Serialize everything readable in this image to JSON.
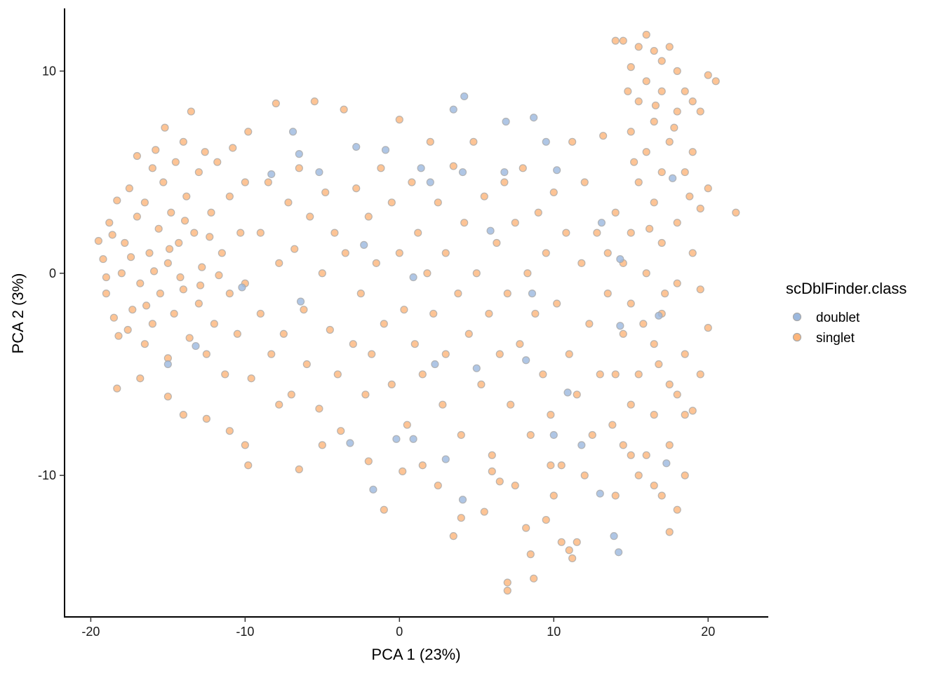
{
  "chart_data": {
    "type": "scatter",
    "title": "",
    "xlabel": "PCA 1 (23%)",
    "ylabel": "PCA 2 (3%)",
    "xlim": [
      -21.7,
      23.9
    ],
    "ylim": [
      -17.0,
      13.1
    ],
    "xticks": [
      -20,
      -10,
      0,
      10,
      20
    ],
    "yticks": [
      -10,
      0,
      10
    ],
    "grid": false,
    "legend": {
      "title": "scDblFinder.class",
      "placement": "right",
      "entries": [
        "doublet",
        "singlet"
      ]
    },
    "colors": {
      "doublet": "#9BB8DE",
      "singlet": "#FDB57A",
      "outline": "#A8A8A8"
    },
    "series": [
      {
        "name": "singlet",
        "points": [
          [
            -19.5,
            1.6
          ],
          [
            -19.2,
            0.7
          ],
          [
            -19,
            -1
          ],
          [
            -18.8,
            2.5
          ],
          [
            -18.5,
            -2.2
          ],
          [
            -18.3,
            3.6
          ],
          [
            -18.2,
            -3.1
          ],
          [
            -18,
            0
          ],
          [
            -17.8,
            1.5
          ],
          [
            -17.5,
            4.2
          ],
          [
            -17.3,
            -1.8
          ],
          [
            -17,
            5.8
          ],
          [
            -17,
            2.8
          ],
          [
            -16.8,
            -0.5
          ],
          [
            -16.5,
            3.5
          ],
          [
            -16.5,
            -3.5
          ],
          [
            -16.2,
            1
          ],
          [
            -16,
            5.2
          ],
          [
            -16,
            -2.5
          ],
          [
            -15.8,
            6.1
          ],
          [
            -15.6,
            2.2
          ],
          [
            -15.5,
            -1
          ],
          [
            -15.3,
            4.5
          ],
          [
            -15.2,
            7.2
          ],
          [
            -15,
            0.5
          ],
          [
            -15,
            -4.2
          ],
          [
            -14.8,
            3
          ],
          [
            -14.6,
            -2
          ],
          [
            -14.5,
            5.5
          ],
          [
            -14.3,
            1.5
          ],
          [
            -14,
            6.5
          ],
          [
            -14,
            -0.8
          ],
          [
            -13.8,
            3.8
          ],
          [
            -13.6,
            -3.2
          ],
          [
            -13.5,
            8
          ],
          [
            -13.3,
            2
          ],
          [
            -13,
            5
          ],
          [
            -13,
            -1.5
          ],
          [
            -12.8,
            0.3
          ],
          [
            -12.6,
            6
          ],
          [
            -12.5,
            -4
          ],
          [
            -12.2,
            3
          ],
          [
            -12,
            -2.5
          ],
          [
            -11.8,
            5.5
          ],
          [
            -11.5,
            1
          ],
          [
            -11.3,
            -5
          ],
          [
            -11,
            3.8
          ],
          [
            -11,
            -1
          ],
          [
            -10.8,
            6.2
          ],
          [
            -10.5,
            -3
          ],
          [
            -10.3,
            2
          ],
          [
            -10,
            -0.5
          ],
          [
            -10,
            4.5
          ],
          [
            -9.8,
            7
          ],
          [
            -9.6,
            -5.2
          ],
          [
            -9.8,
            -9.5
          ],
          [
            -10,
            -8.5
          ],
          [
            -18.3,
            -5.7
          ],
          [
            -15,
            -6.1
          ],
          [
            -14,
            -7
          ],
          [
            -12.5,
            -7.2
          ],
          [
            -11,
            -7.8
          ],
          [
            -16.8,
            -5.2
          ],
          [
            -17.6,
            -2.8
          ],
          [
            -19,
            -0.2
          ],
          [
            -18.6,
            1.9
          ],
          [
            -17.4,
            0.8
          ],
          [
            -16.4,
            -1.6
          ],
          [
            -15.9,
            0.1
          ],
          [
            -14.9,
            1.2
          ],
          [
            -14.2,
            -0.2
          ],
          [
            -13.9,
            2.6
          ],
          [
            -12.9,
            -0.6
          ],
          [
            -12.3,
            1.8
          ],
          [
            -11.7,
            -0.1
          ],
          [
            -9,
            2
          ],
          [
            -9,
            -2
          ],
          [
            -8.5,
            4.5
          ],
          [
            -8.3,
            -4
          ],
          [
            -8,
            8.4
          ],
          [
            -7.8,
            0.5
          ],
          [
            -7.5,
            -3
          ],
          [
            -7.2,
            3.5
          ],
          [
            -7,
            -6
          ],
          [
            -6.8,
            1.2
          ],
          [
            -6.5,
            5.2
          ],
          [
            -6.2,
            -1.8
          ],
          [
            -6,
            -4.5
          ],
          [
            -5.8,
            2.8
          ],
          [
            -5.5,
            8.5
          ],
          [
            -5.2,
            -6.7
          ],
          [
            -5,
            0
          ],
          [
            -5,
            -8.5
          ],
          [
            -4.8,
            4
          ],
          [
            -4.5,
            -2.8
          ],
          [
            -4.2,
            2
          ],
          [
            -4,
            -5
          ],
          [
            -3.8,
            -7.8
          ],
          [
            -3.6,
            8.1
          ],
          [
            -3.5,
            1
          ],
          [
            -3,
            -3.5
          ],
          [
            -2.8,
            4.2
          ],
          [
            -2.5,
            -1
          ],
          [
            -2.2,
            -6
          ],
          [
            -2,
            2.8
          ],
          [
            -1.8,
            -4
          ],
          [
            -1.5,
            0.5
          ],
          [
            -1.2,
            5.2
          ],
          [
            -1,
            -2.5
          ],
          [
            -0.5,
            3.5
          ],
          [
            -0.5,
            -5.5
          ],
          [
            0,
            7.6
          ],
          [
            0,
            1
          ],
          [
            0.3,
            -1.8
          ],
          [
            0.5,
            -7.5
          ],
          [
            0.8,
            4.5
          ],
          [
            1,
            -3.5
          ],
          [
            1.2,
            2
          ],
          [
            1.5,
            -5
          ],
          [
            1.8,
            0
          ],
          [
            2,
            6.5
          ],
          [
            2.2,
            -2
          ],
          [
            2.5,
            3.5
          ],
          [
            2.8,
            -6.5
          ],
          [
            3,
            1
          ],
          [
            3,
            -4
          ],
          [
            3.5,
            5.3
          ],
          [
            3.8,
            -1
          ],
          [
            4,
            -8
          ],
          [
            4.2,
            2.5
          ],
          [
            4.5,
            -3
          ],
          [
            4.8,
            6.5
          ],
          [
            5,
            0
          ],
          [
            5.3,
            -5.5
          ],
          [
            5.5,
            3.8
          ],
          [
            5.8,
            -2
          ],
          [
            6,
            -9
          ],
          [
            6.3,
            1.5
          ],
          [
            6.5,
            -4
          ],
          [
            6.8,
            4.5
          ],
          [
            7,
            -1
          ],
          [
            7.2,
            -6.5
          ],
          [
            7.5,
            2.5
          ],
          [
            7.8,
            -3.5
          ],
          [
            8,
            5.2
          ],
          [
            8.3,
            0
          ],
          [
            8.5,
            -8
          ],
          [
            8.8,
            -2
          ],
          [
            9,
            3
          ],
          [
            9.3,
            -5
          ],
          [
            9.5,
            1
          ],
          [
            9.8,
            -7
          ],
          [
            10,
            4
          ],
          [
            10.2,
            -1.5
          ],
          [
            10.5,
            -9.5
          ],
          [
            10.8,
            2
          ],
          [
            11,
            -4
          ],
          [
            11.2,
            6.5
          ],
          [
            11.5,
            -6
          ],
          [
            11.8,
            0.5
          ],
          [
            12,
            4.5
          ],
          [
            12.3,
            -2.5
          ],
          [
            12.5,
            -8
          ],
          [
            12.8,
            2
          ],
          [
            13,
            -5
          ],
          [
            13.2,
            6.8
          ],
          [
            13.5,
            -1
          ],
          [
            -1,
            -11.7
          ],
          [
            0.2,
            -9.8
          ],
          [
            2.5,
            -10.5
          ],
          [
            3.5,
            -13
          ],
          [
            4,
            -12.1
          ],
          [
            5.5,
            -11.8
          ],
          [
            6.5,
            -10.3
          ],
          [
            7,
            -15.7
          ],
          [
            7,
            -15.3
          ],
          [
            8.5,
            -13.9
          ],
          [
            8.7,
            -15.1
          ],
          [
            8.2,
            -12.6
          ],
          [
            9.5,
            -12.2
          ],
          [
            10,
            -11
          ],
          [
            10.5,
            -13.3
          ],
          [
            11,
            -13.7
          ],
          [
            11.5,
            -13.3
          ],
          [
            12,
            -10
          ],
          [
            11.2,
            -14.1
          ],
          [
            9.8,
            -9.5
          ],
          [
            7.5,
            -10.5
          ],
          [
            6,
            -9.8
          ],
          [
            1.5,
            -9.5
          ],
          [
            -6.5,
            -9.7
          ],
          [
            -7.8,
            -6.5
          ],
          [
            -2,
            -9.3
          ],
          [
            14,
            11.5
          ],
          [
            14.5,
            11.5
          ],
          [
            15,
            10.2
          ],
          [
            15.5,
            11.2
          ],
          [
            16,
            11.8
          ],
          [
            16.5,
            11
          ],
          [
            17,
            10.5
          ],
          [
            17.5,
            11.2
          ],
          [
            18,
            10
          ],
          [
            18.5,
            9
          ],
          [
            19,
            8.5
          ],
          [
            20,
            9.8
          ],
          [
            20.5,
            9.5
          ],
          [
            21.8,
            3
          ],
          [
            19.5,
            8
          ],
          [
            16,
            9.5
          ],
          [
            17,
            9
          ],
          [
            15.5,
            8.5
          ],
          [
            18,
            8
          ],
          [
            16.5,
            7.5
          ],
          [
            17.5,
            6.5
          ],
          [
            15,
            7
          ],
          [
            19,
            6
          ],
          [
            16,
            6
          ],
          [
            18.5,
            5
          ],
          [
            17,
            5
          ],
          [
            15.5,
            4.5
          ],
          [
            20,
            4.2
          ],
          [
            19.5,
            3.2
          ],
          [
            16.5,
            3.5
          ],
          [
            18,
            2.5
          ],
          [
            15,
            2
          ],
          [
            17,
            1.5
          ],
          [
            19,
            1
          ],
          [
            14.5,
            0.5
          ],
          [
            16,
            0
          ],
          [
            18,
            -0.5
          ],
          [
            19.5,
            -0.8
          ],
          [
            15,
            -1.5
          ],
          [
            17,
            -2
          ],
          [
            20,
            -2.7
          ],
          [
            14.5,
            -3
          ],
          [
            16.5,
            -3.5
          ],
          [
            18.5,
            -4
          ],
          [
            15.5,
            -5
          ],
          [
            17.5,
            -5.5
          ],
          [
            19.5,
            -5
          ],
          [
            15,
            -6.5
          ],
          [
            16.5,
            -7
          ],
          [
            18.5,
            -7
          ],
          [
            14.5,
            -8.5
          ],
          [
            16,
            -9
          ],
          [
            17.5,
            -8.5
          ],
          [
            19,
            -6.8
          ],
          [
            15.5,
            -10
          ],
          [
            16.5,
            -10.5
          ],
          [
            17,
            -11
          ],
          [
            18.5,
            -10
          ],
          [
            18,
            -11.7
          ],
          [
            17.5,
            -12.8
          ],
          [
            14,
            -11
          ],
          [
            15,
            -9
          ],
          [
            13.8,
            -7.5
          ],
          [
            14,
            3
          ],
          [
            13.5,
            1
          ],
          [
            14,
            -5
          ],
          [
            16.2,
            2.2
          ],
          [
            17.8,
            7.2
          ],
          [
            18.8,
            3.8
          ],
          [
            15.8,
            -2.5
          ],
          [
            17.2,
            -1
          ],
          [
            16.8,
            -4.5
          ],
          [
            18,
            -6
          ],
          [
            15.2,
            5.5
          ],
          [
            14.8,
            9
          ],
          [
            16.6,
            8.3
          ]
        ]
      },
      {
        "name": "doublet",
        "points": [
          [
            4.2,
            8.75
          ],
          [
            3.5,
            8.1
          ],
          [
            8.7,
            7.7
          ],
          [
            6.9,
            7.5
          ],
          [
            9.5,
            6.5
          ],
          [
            -6.9,
            7.0
          ],
          [
            -0.9,
            6.1
          ],
          [
            -2.8,
            6.25
          ],
          [
            -8.3,
            4.9
          ],
          [
            -6.5,
            5.9
          ],
          [
            -1.7,
            -10.7
          ],
          [
            4.1,
            -11.2
          ],
          [
            13.9,
            -13.0
          ],
          [
            14.2,
            -13.8
          ],
          [
            13.0,
            -10.9
          ],
          [
            -3.2,
            -8.4
          ],
          [
            -0.2,
            -8.2
          ],
          [
            0.9,
            -8.2
          ],
          [
            3.0,
            -9.2
          ],
          [
            10.0,
            -8.0
          ],
          [
            13.1,
            2.5
          ],
          [
            14.3,
            0.7
          ],
          [
            17.7,
            4.7
          ],
          [
            16.8,
            -2.1
          ],
          [
            14.3,
            -2.6
          ],
          [
            1.4,
            5.2
          ],
          [
            4.1,
            5.0
          ],
          [
            6.8,
            5.0
          ],
          [
            10.2,
            5.1
          ],
          [
            2.0,
            4.5
          ],
          [
            -5.2,
            5.0
          ],
          [
            -6.4,
            -1.4
          ],
          [
            -10.2,
            -0.7
          ],
          [
            -13.2,
            -3.6
          ],
          [
            -15.0,
            -4.5
          ],
          [
            5.0,
            -4.7
          ],
          [
            8.2,
            -4.3
          ],
          [
            10.9,
            -5.9
          ],
          [
            11.8,
            -8.5
          ],
          [
            17.3,
            -9.4
          ],
          [
            0.9,
            -0.2
          ],
          [
            -2.3,
            1.4
          ],
          [
            5.9,
            2.1
          ],
          [
            8.6,
            -1.0
          ],
          [
            2.3,
            -4.5
          ]
        ]
      }
    ]
  }
}
